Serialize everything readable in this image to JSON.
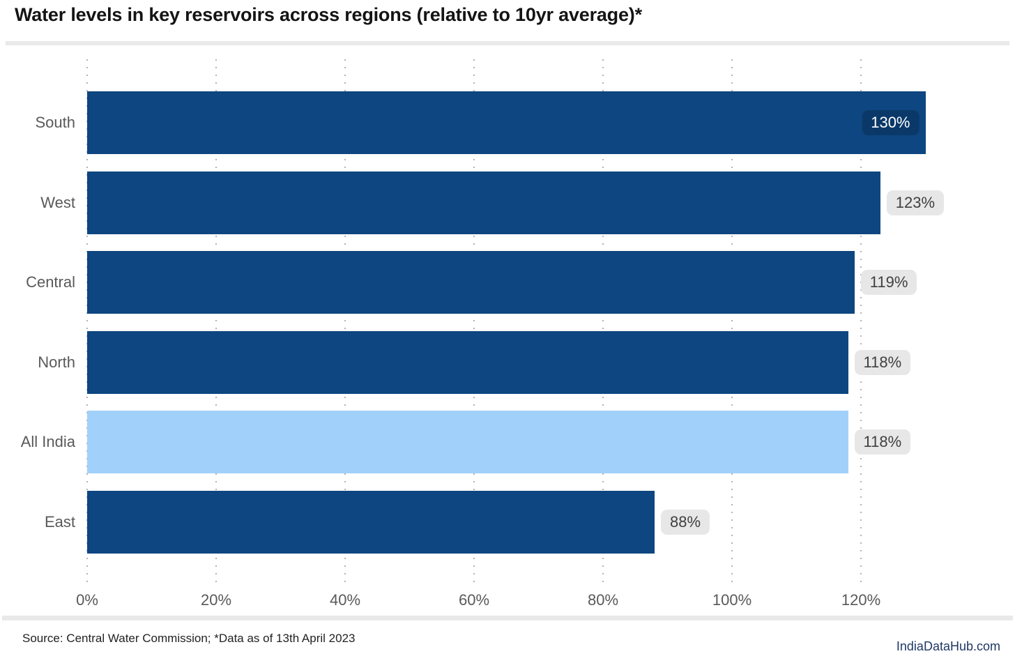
{
  "header": {
    "title": "Water levels in key reservoirs across regions (relative to 10yr average)*"
  },
  "footer": {
    "source": "Source: Central Water Commission; *Data as of 13th April 2023",
    "brand": "IndiaDataHub.com"
  },
  "chart_data": {
    "type": "bar",
    "orientation": "horizontal",
    "title": "Water levels in key reservoirs across regions (relative to 10yr average)*",
    "categories": [
      "South",
      "West",
      "Central",
      "North",
      "All India",
      "East"
    ],
    "values": [
      130,
      123,
      119,
      118,
      118,
      88
    ],
    "value_labels": [
      "130%",
      "123%",
      "119%",
      "118%",
      "118%",
      "88%"
    ],
    "label_placement": [
      "inside",
      "outside",
      "outside",
      "outside",
      "outside",
      "outside"
    ],
    "highlight_category": "All India",
    "highlight_index": 4,
    "unit": "%",
    "xticks": [
      0,
      20,
      40,
      60,
      80,
      100,
      120
    ],
    "xtick_labels": [
      "0%",
      "20%",
      "40%",
      "60%",
      "80%",
      "100%",
      "120%"
    ],
    "xlim": [
      0,
      140
    ],
    "grid": "dotted-vertical",
    "legend": "none",
    "colors": {
      "bar": "#0D4680",
      "highlight_bar": "#A1D0FA",
      "inside_label_bg": "rgba(0,0,0,0.18)",
      "inside_label_text": "#FFFFFF",
      "outside_label_bg": "#E7E7E7",
      "outside_label_text": "#3F3F3F",
      "axis_text": "#595959",
      "title_text": "#141414",
      "brand_text": "#1F3864"
    }
  }
}
